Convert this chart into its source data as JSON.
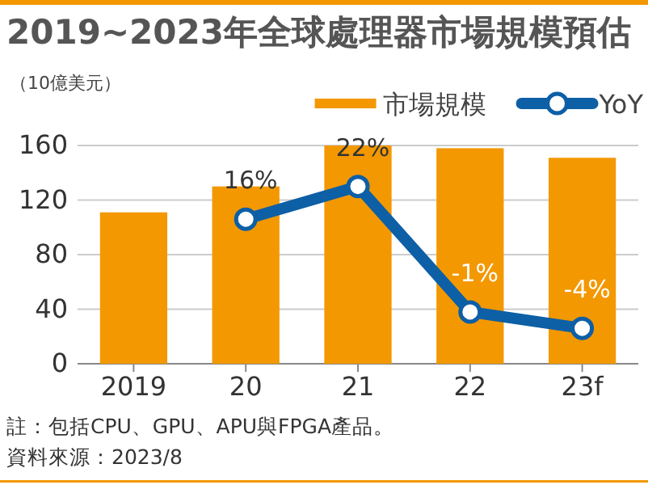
{
  "chart_data": {
    "type": "bar",
    "title": "2019~2023年全球處理器市場規模預估",
    "subtitle": "（10億美元）",
    "categories": [
      "2019",
      "20",
      "21",
      "22",
      "23f"
    ],
    "series": [
      {
        "name": "市場規模",
        "color": "#f39800",
        "values": [
          111,
          130,
          160,
          158,
          151
        ]
      },
      {
        "name": "YoY",
        "type": "line",
        "axis": "y2",
        "color": "#0d5fa6",
        "marker": "circle",
        "values": [
          null,
          16,
          22,
          -1,
          -4
        ],
        "value_labels": [
          null,
          "16%",
          "22%",
          "-1%",
          "-4%"
        ]
      }
    ],
    "ylim": [
      0,
      160
    ],
    "yticks": [
      0,
      40,
      80,
      120,
      160
    ],
    "y2lim": [
      -10.5,
      29.5
    ],
    "grid": "y",
    "legend": "top right",
    "annotations": [
      "註：包括CPU、GPU、APU與FPGA產品。",
      "資料來源：2023/8"
    ]
  }
}
